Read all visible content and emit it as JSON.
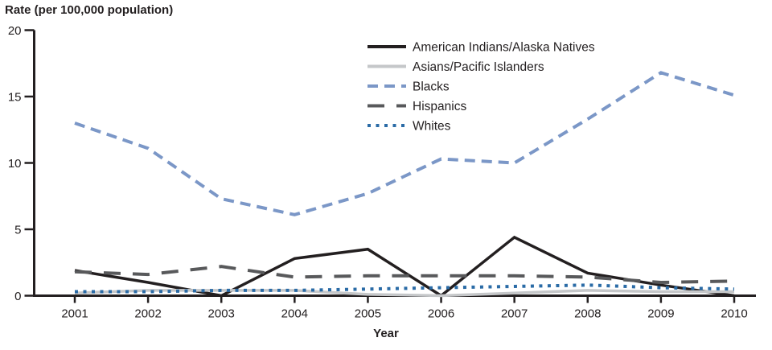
{
  "chart_data": {
    "type": "line",
    "title": "Rate (per 100,000 population)",
    "xlabel": "Year",
    "ylabel": "Rate (per 100,000 population)",
    "x": [
      "2001",
      "2002",
      "2003",
      "2004",
      "2005",
      "2006",
      "2007",
      "2008",
      "2009",
      "2010"
    ],
    "ylim": [
      0,
      20
    ],
    "yticks": [
      0,
      5,
      10,
      15,
      20
    ],
    "grid": false,
    "legend_position": "top-center-inside",
    "series": [
      {
        "name": "American Indians/Alaska Natives",
        "color": "#231F20",
        "style": "solid",
        "values": [
          1.9,
          1.0,
          0.0,
          2.8,
          3.5,
          0.0,
          4.4,
          1.7,
          0.8,
          0.0
        ]
      },
      {
        "name": "Asians/Pacific Islanders",
        "color": "#C5C7C9",
        "style": "solid",
        "values": [
          0.2,
          0.4,
          0.4,
          0.4,
          0.1,
          0.0,
          0.2,
          0.4,
          0.3,
          0.3
        ]
      },
      {
        "name": "Blacks",
        "color": "#7B97C7",
        "style": "dashed",
        "values": [
          13.0,
          11.1,
          7.3,
          6.1,
          7.7,
          10.3,
          10.0,
          13.3,
          16.8,
          15.1
        ]
      },
      {
        "name": "Hispanics",
        "color": "#58595B",
        "style": "long-dashed",
        "values": [
          1.8,
          1.6,
          2.2,
          1.4,
          1.5,
          1.5,
          1.5,
          1.4,
          1.0,
          1.1
        ]
      },
      {
        "name": "Whites",
        "color": "#2A6BA6",
        "style": "dotted",
        "values": [
          0.3,
          0.3,
          0.4,
          0.4,
          0.5,
          0.6,
          0.7,
          0.8,
          0.6,
          0.5
        ]
      }
    ]
  },
  "colors": {
    "axis": "#231F20",
    "text": "#231F20",
    "background": "#FFFFFF"
  }
}
